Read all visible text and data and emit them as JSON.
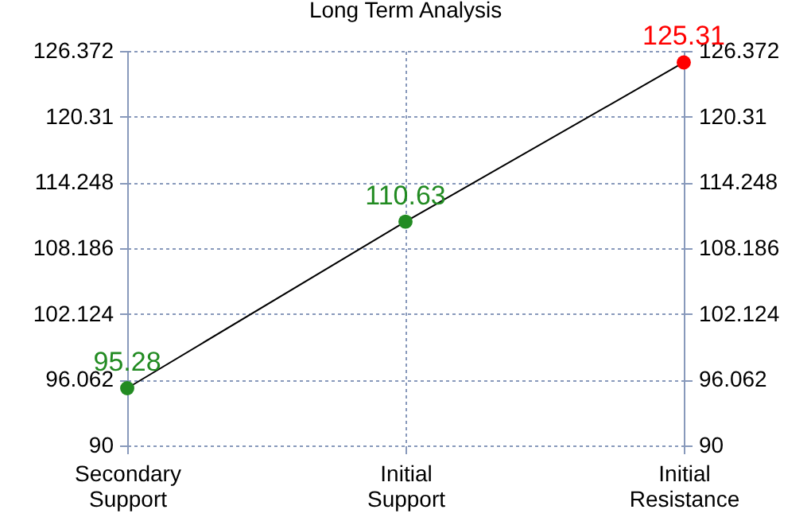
{
  "chart_data": {
    "type": "line",
    "title": "Long Term Analysis",
    "categories": [
      "Secondary Support",
      "Initial Support",
      "Initial Resistance"
    ],
    "series": [
      {
        "color": "#000000",
        "colors": [
          "#228b22",
          "#228b22",
          "#ff0000"
        ],
        "values": [
          95.28,
          110.63,
          125.31
        ]
      }
    ],
    "ylim": [
      90,
      126.372
    ],
    "yticks": [
      90,
      96.062,
      102.124,
      108.186,
      114.248,
      120.31,
      126.372
    ],
    "y2lim": [
      90,
      126.372
    ],
    "y2ticks": [
      90,
      96.062,
      102.124,
      108.186,
      114.248,
      120.31,
      126.372
    ],
    "grid": true,
    "marker": "circle",
    "line_style": "solid",
    "data_labels": true
  }
}
